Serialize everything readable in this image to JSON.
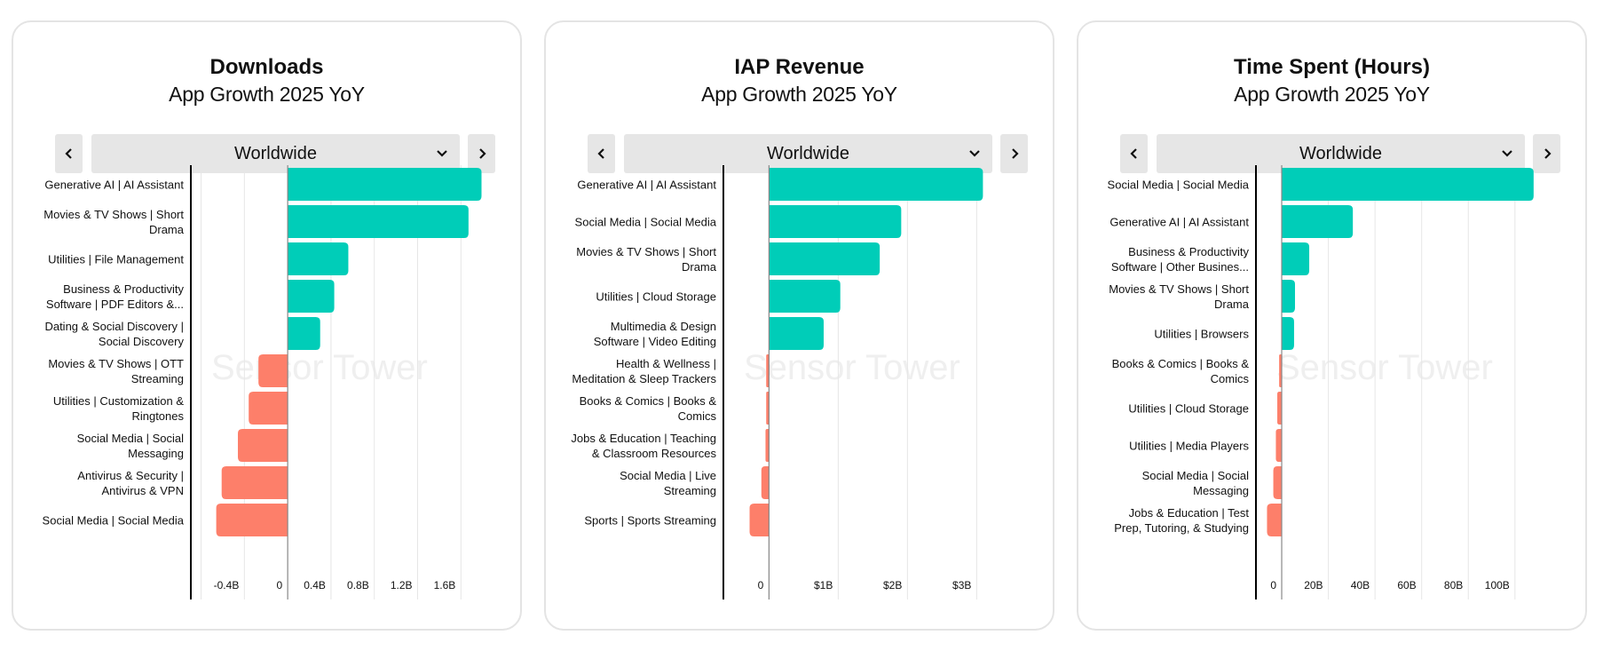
{
  "colors": {
    "positive": "#00cdb8",
    "negative": "#fd7f6a",
    "grid": "#e6e6e6",
    "axis": "#000000",
    "zero_line": "#888888",
    "button_bg": "#e6e6e6"
  },
  "watermark": "Sensor Tower",
  "cards": [
    {
      "title": "Downloads",
      "subtitle": "App Growth 2025 YoY",
      "region": "Worldwide",
      "prev_icon": "chevron-left-icon",
      "next_icon": "chevron-right-icon",
      "dropdown_icon": "chevron-down-icon"
    },
    {
      "title": "IAP Revenue",
      "subtitle": "App Growth 2025 YoY",
      "region": "Worldwide",
      "prev_icon": "chevron-left-icon",
      "next_icon": "chevron-right-icon",
      "dropdown_icon": "chevron-down-icon"
    },
    {
      "title": "Time Spent (Hours)",
      "subtitle": "App Growth 2025 YoY",
      "region": "Worldwide",
      "prev_icon": "chevron-left-icon",
      "next_icon": "chevron-right-icon",
      "dropdown_icon": "chevron-down-icon"
    }
  ],
  "chart_data": [
    {
      "type": "bar",
      "orientation": "horizontal",
      "title": "Downloads",
      "subtitle": "App Growth 2025 YoY",
      "unit": "B",
      "categories": [
        [
          "Generative AI | AI Assistant"
        ],
        [
          "Movies & TV Shows | Short",
          "Drama"
        ],
        [
          "Utilities | File Management"
        ],
        [
          "Business & Productivity",
          "Software | PDF Editors &..."
        ],
        [
          "Dating & Social Discovery |",
          "Social Discovery"
        ],
        [
          "Movies & TV Shows | OTT",
          "Streaming"
        ],
        [
          "Utilities | Customization &",
          "Ringtones"
        ],
        [
          "Social Media | Social",
          "Messaging"
        ],
        [
          "Antivirus & Security |",
          "Antivirus & VPN"
        ],
        [
          "Social Media | Social Media"
        ]
      ],
      "values": [
        1.79,
        1.67,
        0.56,
        0.43,
        0.3,
        -0.27,
        -0.36,
        -0.46,
        -0.61,
        -0.66
      ],
      "xlim": [
        -0.87,
        1.95
      ],
      "gridlines": [
        -0.8,
        -0.4,
        0,
        0.4,
        0.8,
        1.2,
        1.6
      ],
      "tick_values": [
        -0.4,
        0,
        0.4,
        0.8,
        1.2,
        1.6
      ],
      "tick_labels": [
        "-0.4B",
        "0",
        "0.4B",
        "0.8B",
        "1.2B",
        "1.6B"
      ],
      "grid": true
    },
    {
      "type": "bar",
      "orientation": "horizontal",
      "title": "IAP Revenue",
      "subtitle": "App Growth 2025 YoY",
      "unit": "$B",
      "categories": [
        [
          "Generative AI | AI Assistant"
        ],
        [
          "Social Media | Social Media"
        ],
        [
          "Movies & TV Shows | Short",
          "Drama"
        ],
        [
          "Utilities | Cloud Storage"
        ],
        [
          "Multimedia & Design",
          "Software | Video Editing"
        ],
        [
          "Health & Wellness |",
          "Meditation & Sleep Trackers"
        ],
        [
          "Books & Comics | Books &",
          "Comics"
        ],
        [
          "Jobs & Education | Teaching",
          "& Classroom Resources"
        ],
        [
          "Social Media | Live",
          "Streaming"
        ],
        [
          "Sports | Sports Streaming"
        ]
      ],
      "values": [
        3.09,
        1.91,
        1.6,
        1.03,
        0.79,
        -0.04,
        -0.04,
        -0.05,
        -0.11,
        -0.28
      ],
      "xlim": [
        -0.62,
        3.79
      ],
      "gridlines": [
        0,
        1,
        2,
        3
      ],
      "tick_values": [
        0,
        1,
        2,
        3
      ],
      "tick_labels": [
        "0",
        "$1B",
        "$2B",
        "$3B"
      ],
      "grid": true
    },
    {
      "type": "bar",
      "orientation": "horizontal",
      "title": "Time Spent (Hours)",
      "subtitle": "App Growth 2025 YoY",
      "unit": "B hours",
      "categories": [
        [
          "Social Media | Social Media"
        ],
        [
          "Generative AI | AI Assistant"
        ],
        [
          "Business & Productivity",
          "Software | Other Busines..."
        ],
        [
          "Movies & TV Shows | Short",
          "Drama"
        ],
        [
          "Utilities | Browsers"
        ],
        [
          "Books & Comics | Books &",
          "Comics"
        ],
        [
          "Utilities | Cloud Storage"
        ],
        [
          "Utilities | Media Players"
        ],
        [
          "Social Media | Social",
          "Messaging"
        ],
        [
          "Jobs & Education | Test",
          "Prep, Tutoring, & Studying"
        ]
      ],
      "values": [
        108,
        30.5,
        11.8,
        5.7,
        5.3,
        -1.1,
        -1.9,
        -2.5,
        -3.6,
        -6.3
      ],
      "xlim": [
        -9.9,
        121
      ],
      "gridlines": [
        0,
        20,
        40,
        60,
        80,
        100
      ],
      "tick_values": [
        0,
        20,
        40,
        60,
        80,
        100
      ],
      "tick_labels": [
        "0",
        "20B",
        "40B",
        "60B",
        "80B",
        "100B"
      ],
      "grid": true
    }
  ]
}
